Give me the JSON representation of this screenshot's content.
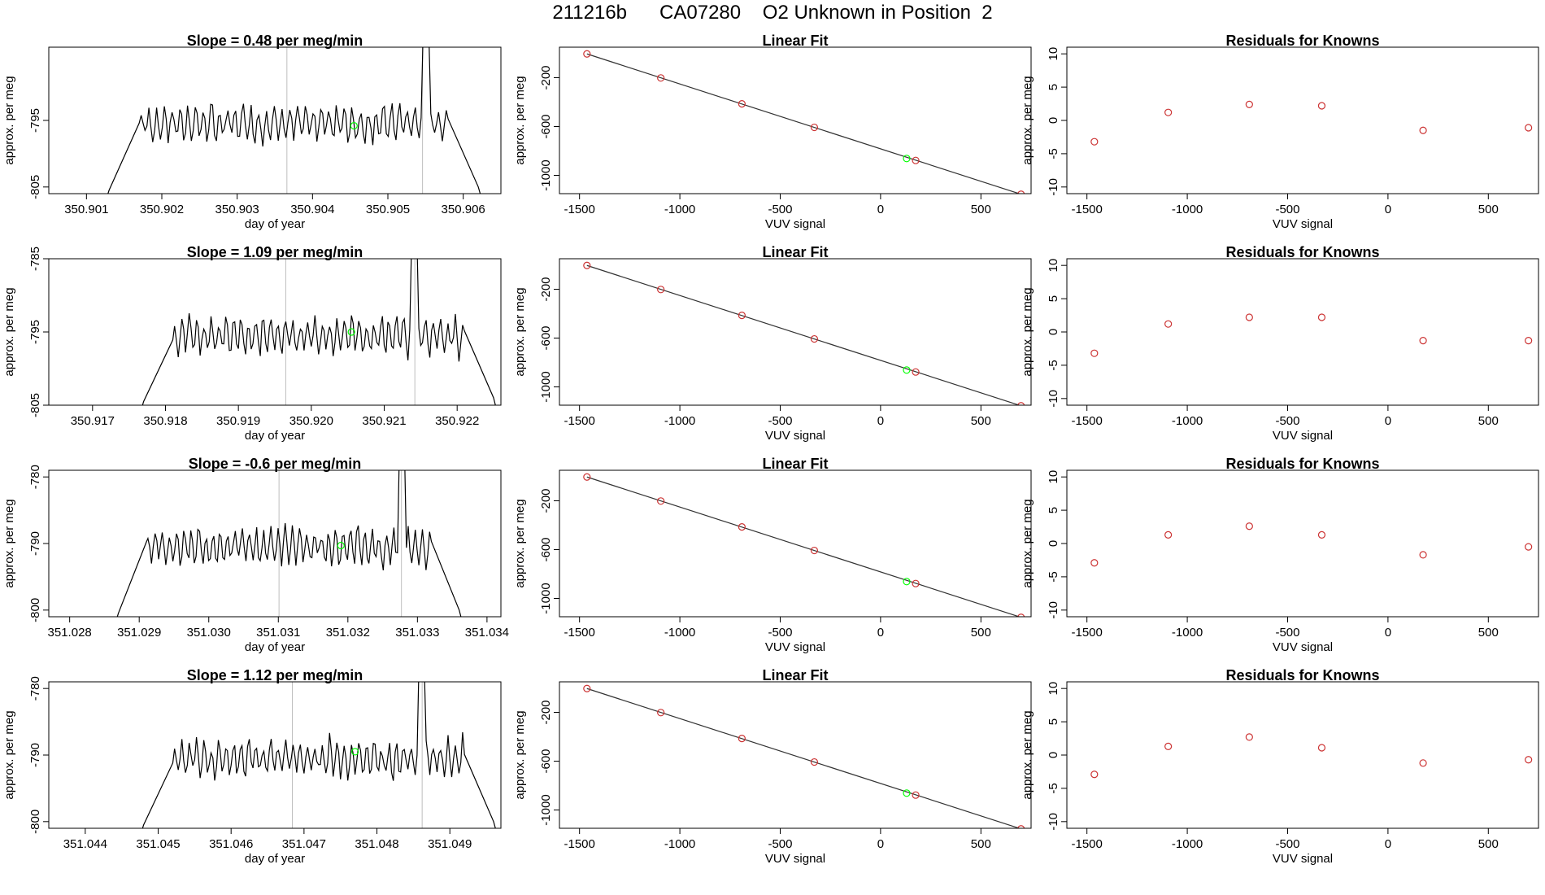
{
  "page": {
    "title": "211216b      CA07280    O2 Unknown in Position  2"
  },
  "colors": {
    "trace": "#000000",
    "marker_unknown": "#00ff00",
    "marker_known": "#cc3333",
    "vline": "#bebebe",
    "fitline": "#333333"
  },
  "chart_data": [
    {
      "type": "line",
      "title": "Slope =  0.48  per meg/min",
      "xlabel": "day of year",
      "ylabel": "approx. per meg",
      "xlim": [
        350.9005,
        350.9065
      ],
      "ylim": [
        -806,
        -784
      ],
      "xticks": [
        350.901,
        350.902,
        350.903,
        350.904,
        350.905,
        350.906
      ],
      "xtick_labels": [
        "350.901",
        "350.902",
        "350.903",
        "350.904",
        "350.905",
        "350.906"
      ],
      "yticks": [
        -805,
        -795
      ],
      "ytick_labels": [
        "-805",
        "-795"
      ],
      "vlines": [
        350.90366,
        350.90546
      ],
      "trace_start": 350.9013,
      "trace_end": 350.9062,
      "peak_x": 350.9055,
      "dot": [
        350.90455,
        -795.8
      ]
    },
    {
      "type": "scatter",
      "title": "Linear Fit",
      "xlabel": "VUV signal",
      "ylabel": "approx. per meg",
      "xlim": [
        -1600,
        750
      ],
      "ylim": [
        -1150,
        50
      ],
      "xticks": [
        -1500,
        -1000,
        -500,
        0,
        500
      ],
      "xtick_labels": [
        "-1500",
        "-1000",
        "-500",
        "0",
        "500"
      ],
      "yticks": [
        -200,
        -600,
        -1000
      ],
      "ytick_labels": [
        "-200",
        "-600",
        "-1000"
      ],
      "points_x": [
        -1463,
        -1095,
        -691,
        -330,
        175,
        700
      ],
      "points_y": [
        -5,
        -202,
        -414,
        -607,
        -878,
        -1155
      ],
      "unknown": [
        130,
        -862
      ],
      "line_x": [
        -1463,
        700
      ],
      "line_y": [
        -5,
        -1155
      ]
    },
    {
      "type": "scatter",
      "title": "Residuals for Knowns",
      "xlabel": "VUV signal",
      "ylabel": "approx. per meg",
      "xlim": [
        -1600,
        750
      ],
      "ylim": [
        -11,
        11
      ],
      "xticks": [
        -1500,
        -1000,
        -500,
        0,
        500
      ],
      "xtick_labels": [
        "-1500",
        "-1000",
        "-500",
        "0",
        "500"
      ],
      "yticks": [
        10,
        5,
        0,
        -5,
        -10
      ],
      "ytick_labels": [
        "10",
        "5",
        "0",
        "-5",
        "-10"
      ],
      "points_x": [
        -1463,
        -1095,
        -691,
        -330,
        175,
        700
      ],
      "points_y": [
        -3.2,
        1.2,
        2.4,
        2.2,
        -1.5,
        -1.1
      ]
    },
    {
      "type": "line",
      "title": "Slope =  1.09  per meg/min",
      "xlabel": "day of year",
      "ylabel": "approx. per meg",
      "xlim": [
        350.9164,
        350.9226
      ],
      "ylim": [
        -805,
        -785
      ],
      "xticks": [
        350.917,
        350.918,
        350.919,
        350.92,
        350.921,
        350.922
      ],
      "xtick_labels": [
        "350.917",
        "350.918",
        "350.919",
        "350.920",
        "350.921",
        "350.922"
      ],
      "yticks": [
        -785,
        -795,
        -805
      ],
      "ytick_labels": [
        "-785",
        "-795",
        "-805"
      ],
      "vlines": [
        350.91965,
        350.92142
      ],
      "trace_start": 350.9177,
      "trace_end": 350.9225,
      "peak_x": 350.92142,
      "dot": [
        350.92055,
        -795
      ]
    },
    {
      "type": "scatter",
      "title": "Linear Fit",
      "xlabel": "VUV signal",
      "ylabel": "approx. per meg",
      "xlim": [
        -1600,
        750
      ],
      "ylim": [
        -1150,
        50
      ],
      "xticks": [
        -1500,
        -1000,
        -500,
        0,
        500
      ],
      "xtick_labels": [
        "-1500",
        "-1000",
        "-500",
        "0",
        "500"
      ],
      "yticks": [
        -200,
        -600,
        -1000
      ],
      "ytick_labels": [
        "-200",
        "-600",
        "-1000"
      ],
      "points_x": [
        -1463,
        -1095,
        -691,
        -330,
        175,
        700
      ],
      "points_y": [
        -5,
        -202,
        -414,
        -607,
        -878,
        -1155
      ],
      "unknown": [
        130,
        -862
      ],
      "line_x": [
        -1463,
        700
      ],
      "line_y": [
        -5,
        -1155
      ]
    },
    {
      "type": "scatter",
      "title": "Residuals for Knowns",
      "xlabel": "VUV signal",
      "ylabel": "approx. per meg",
      "xlim": [
        -1600,
        750
      ],
      "ylim": [
        -11,
        11
      ],
      "xticks": [
        -1500,
        -1000,
        -500,
        0,
        500
      ],
      "xtick_labels": [
        "-1500",
        "-1000",
        "-500",
        "0",
        "500"
      ],
      "yticks": [
        10,
        5,
        0,
        -5,
        -10
      ],
      "ytick_labels": [
        "10",
        "5",
        "0",
        "-5",
        "-10"
      ],
      "points_x": [
        -1463,
        -1095,
        -691,
        -330,
        175,
        700
      ],
      "points_y": [
        -3.2,
        1.2,
        2.2,
        2.2,
        -1.3,
        -1.3
      ]
    },
    {
      "type": "line",
      "title": "Slope =  -0.6  per meg/min",
      "xlabel": "day of year",
      "ylabel": "approx. per meg",
      "xlim": [
        351.0277,
        351.0342
      ],
      "ylim": [
        -801,
        -779
      ],
      "xticks": [
        351.028,
        351.029,
        351.03,
        351.031,
        351.032,
        351.033,
        351.034
      ],
      "xtick_labels": [
        "351.028",
        "351.029",
        "351.030",
        "351.031",
        "351.032",
        "351.033",
        "351.034"
      ],
      "yticks": [
        -780,
        -790,
        -800
      ],
      "ytick_labels": [
        "-780",
        "-790",
        "-800"
      ],
      "vlines": [
        351.03101,
        351.03277
      ],
      "trace_start": 351.0287,
      "trace_end": 351.0336,
      "peak_x": 351.03277,
      "dot": [
        351.0319,
        -790.3
      ]
    },
    {
      "type": "scatter",
      "title": "Linear Fit",
      "xlabel": "VUV signal",
      "ylabel": "approx. per meg",
      "xlim": [
        -1600,
        750
      ],
      "ylim": [
        -1150,
        50
      ],
      "xticks": [
        -1500,
        -1000,
        -500,
        0,
        500
      ],
      "xtick_labels": [
        "-1500",
        "-1000",
        "-500",
        "0",
        "500"
      ],
      "yticks": [
        -200,
        -600,
        -1000
      ],
      "ytick_labels": [
        "-200",
        "-600",
        "-1000"
      ],
      "points_x": [
        -1463,
        -1095,
        -691,
        -330,
        175,
        700
      ],
      "points_y": [
        -5,
        -202,
        -414,
        -607,
        -878,
        -1155
      ],
      "unknown": [
        130,
        -862
      ],
      "line_x": [
        -1463,
        700
      ],
      "line_y": [
        -5,
        -1155
      ]
    },
    {
      "type": "scatter",
      "title": "Residuals for Knowns",
      "xlabel": "VUV signal",
      "ylabel": "approx. per meg",
      "xlim": [
        -1600,
        750
      ],
      "ylim": [
        -11,
        11
      ],
      "xticks": [
        -1500,
        -1000,
        -500,
        0,
        500
      ],
      "xtick_labels": [
        "-1500",
        "-1000",
        "-500",
        "0",
        "500"
      ],
      "yticks": [
        10,
        5,
        0,
        -5,
        -10
      ],
      "ytick_labels": [
        "10",
        "5",
        "0",
        "-5",
        "-10"
      ],
      "points_x": [
        -1463,
        -1095,
        -691,
        -330,
        175,
        700
      ],
      "points_y": [
        -2.9,
        1.3,
        2.6,
        1.3,
        -1.7,
        -0.5
      ]
    },
    {
      "type": "line",
      "title": "Slope =  1.12  per meg/min",
      "xlabel": "day of year",
      "ylabel": "approx. per meg",
      "xlim": [
        351.0435,
        351.0497
      ],
      "ylim": [
        -801,
        -779
      ],
      "xticks": [
        351.044,
        351.045,
        351.046,
        351.047,
        351.048,
        351.049
      ],
      "xtick_labels": [
        "351.044",
        "351.045",
        "351.046",
        "351.047",
        "351.048",
        "351.049"
      ],
      "yticks": [
        -780,
        -790,
        -800
      ],
      "ytick_labels": [
        "-780",
        "-790",
        "-800"
      ],
      "vlines": [
        351.04684,
        351.04862
      ],
      "trace_start": 351.0448,
      "trace_end": 351.0496,
      "peak_x": 351.04862,
      "dot": [
        351.0477,
        -789.5
      ]
    },
    {
      "type": "scatter",
      "title": "Linear Fit",
      "xlabel": "VUV signal",
      "ylabel": "approx. per meg",
      "xlim": [
        -1600,
        750
      ],
      "ylim": [
        -1150,
        50
      ],
      "xticks": [
        -1500,
        -1000,
        -500,
        0,
        500
      ],
      "xtick_labels": [
        "-1500",
        "-1000",
        "-500",
        "0",
        "500"
      ],
      "yticks": [
        -200,
        -600,
        -1000
      ],
      "ytick_labels": [
        "-200",
        "-600",
        "-1000"
      ],
      "points_x": [
        -1463,
        -1095,
        -691,
        -330,
        175,
        700
      ],
      "points_y": [
        -5,
        -202,
        -414,
        -607,
        -878,
        -1155
      ],
      "unknown": [
        130,
        -862
      ],
      "line_x": [
        -1463,
        700
      ],
      "line_y": [
        -5,
        -1155
      ]
    },
    {
      "type": "scatter",
      "title": "Residuals for Knowns",
      "xlabel": "VUV signal",
      "ylabel": "approx. per meg",
      "xlim": [
        -1600,
        750
      ],
      "ylim": [
        -11,
        11
      ],
      "xticks": [
        -1500,
        -1000,
        -500,
        0,
        500
      ],
      "xtick_labels": [
        "-1500",
        "-1000",
        "-500",
        "0",
        "500"
      ],
      "yticks": [
        10,
        5,
        0,
        -5,
        -10
      ],
      "ytick_labels": [
        "10",
        "5",
        "0",
        "-5",
        "-10"
      ],
      "points_x": [
        -1463,
        -1095,
        -691,
        -330,
        175,
        700
      ],
      "points_y": [
        -2.9,
        1.3,
        2.7,
        1.1,
        -1.2,
        -0.7
      ]
    }
  ]
}
